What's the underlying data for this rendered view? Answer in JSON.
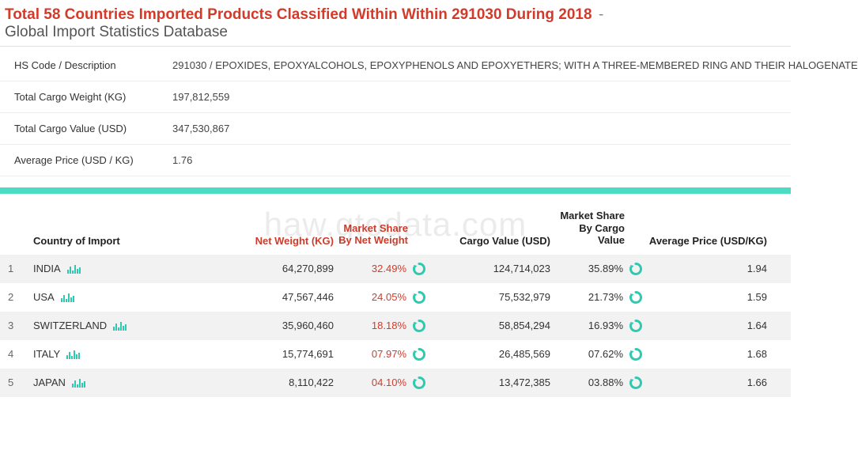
{
  "header": {
    "title_red": "Total 58 Countries Imported Products Classified Within Within 291030 During 2018",
    "dash": "-",
    "subtitle": "Global Import Statistics Database"
  },
  "summary": [
    {
      "label": "HS Code / Description",
      "value": "291030 / EPOXIDES, EPOXYALCOHOLS, EPOXYPHENOLS AND EPOXYETHERS; WITH A THREE-MEMBERED RING AND THEIR HALOGENATE"
    },
    {
      "label": "Total Cargo Weight (KG)",
      "value": "197,812,559"
    },
    {
      "label": "Total Cargo Value (USD)",
      "value": "347,530,867"
    },
    {
      "label": "Average Price (USD / KG)",
      "value": "1.76"
    }
  ],
  "table": {
    "columns": {
      "country": "Country of Import",
      "net_weight": "Net Weight (KG)",
      "ms_weight_l1": "Market Share",
      "ms_weight_l2": "By Net Weight",
      "cargo_value": "Cargo Value (USD)",
      "ms_cargo_l1": "Market Share",
      "ms_cargo_l2": "By Cargo Value",
      "avg_price": "Average Price (USD/KG)"
    },
    "rows": [
      {
        "idx": "1",
        "country": "INDIA",
        "net_weight": "64,270,899",
        "ms_weight": "32.49%",
        "cargo_value": "124,714,023",
        "ms_cargo": "35.89%",
        "avg_price": "1.94"
      },
      {
        "idx": "2",
        "country": "USA",
        "net_weight": "47,567,446",
        "ms_weight": "24.05%",
        "cargo_value": "75,532,979",
        "ms_cargo": "21.73%",
        "avg_price": "1.59"
      },
      {
        "idx": "3",
        "country": "SWITZERLAND",
        "net_weight": "35,960,460",
        "ms_weight": "18.18%",
        "cargo_value": "58,854,294",
        "ms_cargo": "16.93%",
        "avg_price": "1.64"
      },
      {
        "idx": "4",
        "country": "ITALY",
        "net_weight": "15,774,691",
        "ms_weight": "07.97%",
        "cargo_value": "26,485,569",
        "ms_cargo": "07.62%",
        "avg_price": "1.68"
      },
      {
        "idx": "5",
        "country": "JAPAN",
        "net_weight": "8,110,422",
        "ms_weight": "04.10%",
        "cargo_value": "13,472,385",
        "ms_cargo": "03.88%",
        "avg_price": "1.66"
      }
    ]
  },
  "colors": {
    "accent_red": "#d23b2a",
    "accent_green": "#2fc9af",
    "green_bar": "#4ddbc4",
    "row_alt": "#f2f2f2"
  },
  "watermark": "haw.gtodata.com"
}
